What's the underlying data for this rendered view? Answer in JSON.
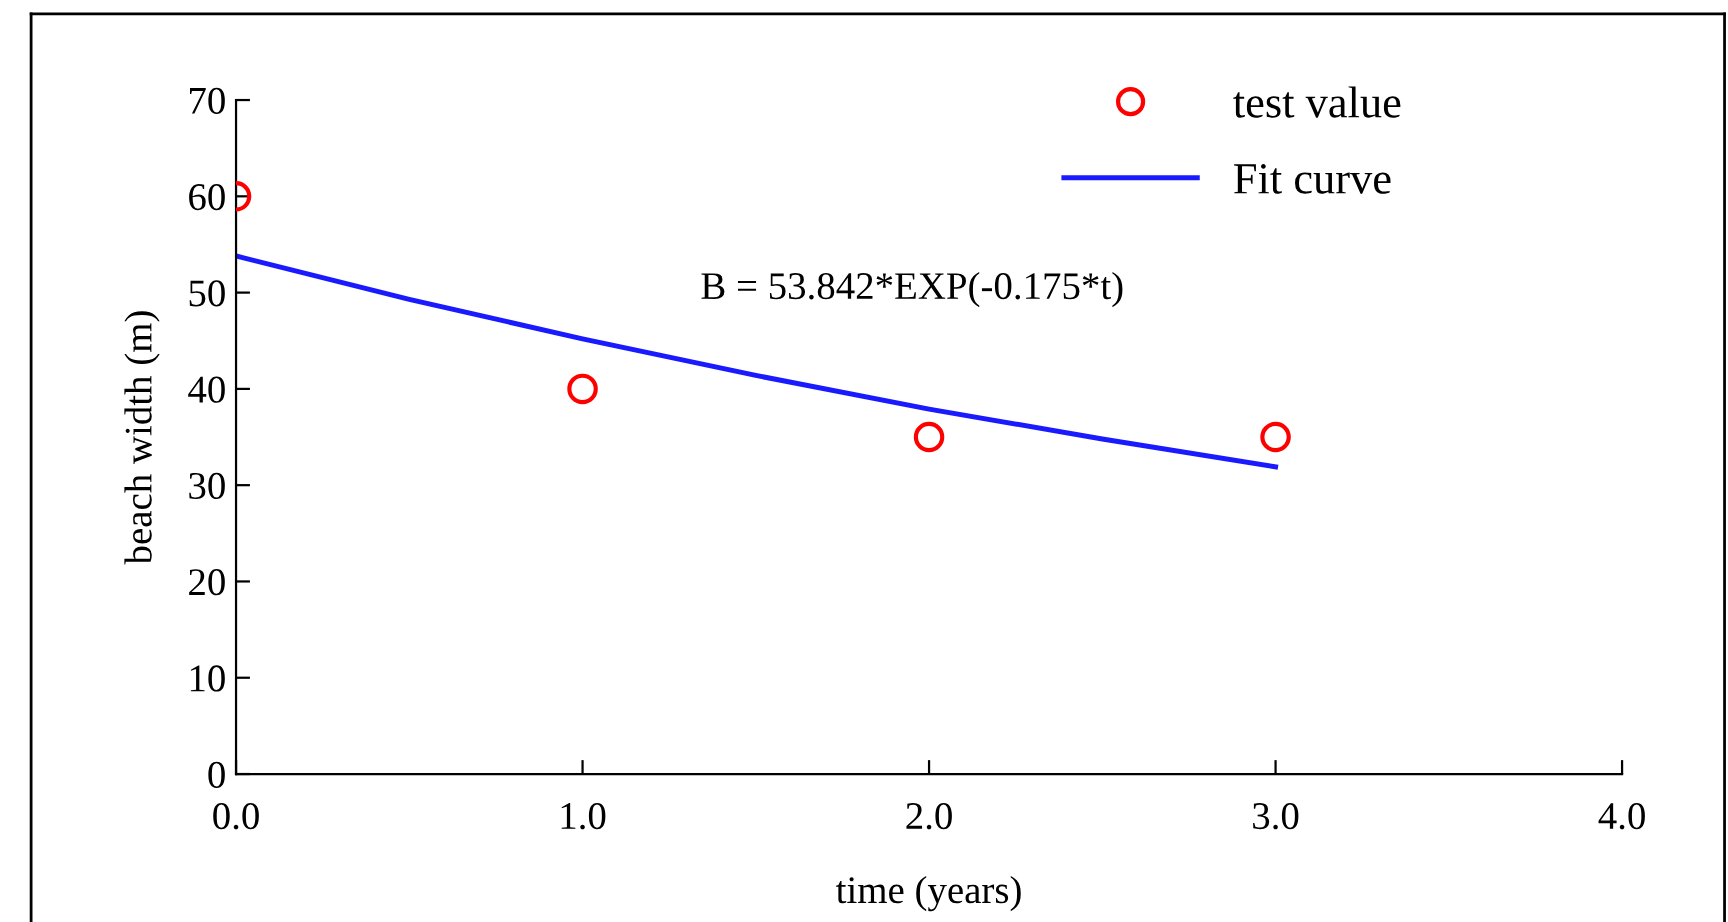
{
  "chart_data": {
    "type": "scatter",
    "xlabel": "time (years)",
    "ylabel": "beach width (m)",
    "annotations": [
      "B = 53.842*EXP(-0.175*t)"
    ],
    "series": [
      {
        "name": "test value",
        "color": "#ff0000",
        "marker": "circle",
        "x": [
          0,
          1,
          2,
          3
        ],
        "values": [
          60,
          40,
          35,
          35
        ]
      },
      {
        "name": "Fit curve",
        "type": "line",
        "color": "#1a1aff",
        "marker": "none",
        "x": [
          0,
          0.5,
          1,
          1.5,
          2,
          2.5,
          3
        ],
        "values": [
          53.8,
          49.3,
          45.2,
          41.4,
          37.9,
          34.8,
          31.9
        ]
      }
    ],
    "xlim": [
      0,
      4
    ],
    "xticks": [
      {
        "value": 0,
        "label": "0.0"
      },
      {
        "value": 1,
        "label": "1.0"
      },
      {
        "value": 2,
        "label": "2.0"
      },
      {
        "value": 3,
        "label": "3.0"
      },
      {
        "value": 4,
        "label": "4.0"
      }
    ],
    "ylim": [
      0,
      70
    ],
    "yticks": [
      0,
      10,
      20,
      30,
      40,
      50,
      60,
      70
    ],
    "legend": "top right",
    "grid": false
  }
}
